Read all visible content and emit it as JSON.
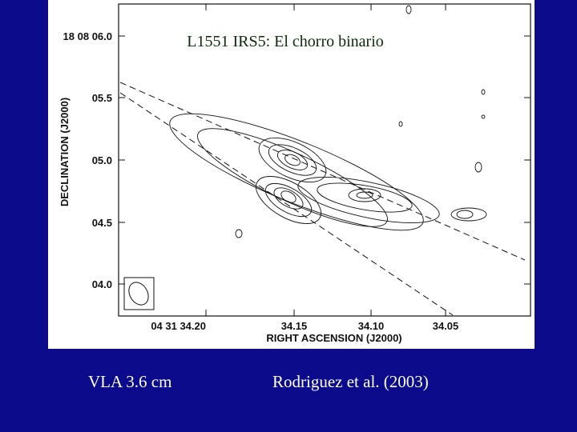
{
  "figure": {
    "title": "L1551 IRS5: El chorro binario",
    "y_axis": {
      "label": "DECLINATION (J2000)",
      "ticks": [
        "18 08 06.0",
        "05.5",
        "05.0",
        "04.5",
        "04.0"
      ]
    },
    "x_axis": {
      "label": "RIGHT ASCENSION (J2000)",
      "ticks": [
        "04 31 34.20",
        "34.15",
        "34.10",
        "34.05"
      ]
    }
  },
  "footer": {
    "left": "VLA 3.6 cm",
    "right": "Rodriguez et al. (2003)"
  }
}
